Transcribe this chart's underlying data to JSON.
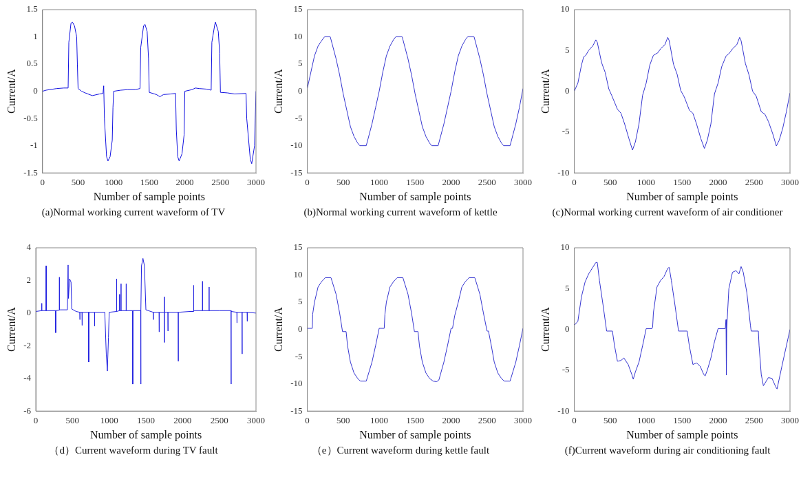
{
  "chart_data": [
    {
      "type": "line",
      "title": "(a)Normal working current waveform of TV",
      "xlabel": "Number of sample points",
      "ylabel": "Current/A",
      "xlim": [
        0,
        3000
      ],
      "xticks": [
        0,
        500,
        1000,
        1500,
        2000,
        2500,
        3000
      ],
      "ylim": [
        -1.5,
        1.5
      ],
      "yticks": [
        -1.5,
        -1,
        -0.5,
        0,
        0.5,
        1,
        1.5
      ],
      "series": [
        {
          "color": "#1010e0",
          "x": [
            0,
            50,
            100,
            200,
            300,
            360,
            370,
            400,
            420,
            450,
            480,
            490,
            500,
            550,
            600,
            700,
            800,
            850,
            860,
            870,
            900,
            920,
            950,
            980,
            990,
            1000,
            1100,
            1200,
            1300,
            1370,
            1380,
            1420,
            1440,
            1470,
            1490,
            1500,
            1600,
            1650,
            1700,
            1800,
            1870,
            1880,
            1900,
            1920,
            1960,
            1990,
            2000,
            2100,
            2150,
            2200,
            2300,
            2370,
            2380,
            2420,
            2430,
            2470,
            2490,
            2500,
            2600,
            2700,
            2860,
            2870,
            2920,
            2940,
            2980,
            3000
          ],
          "values": [
            0,
            0.02,
            0.03,
            0.05,
            0.06,
            0.06,
            0.9,
            1.25,
            1.27,
            1.2,
            1,
            0.5,
            0.05,
            0,
            -0.03,
            -0.08,
            -0.05,
            -0.04,
            0.1,
            -0.5,
            -1.2,
            -1.28,
            -1.2,
            -0.9,
            -0.3,
            0,
            0.02,
            0.03,
            0.03,
            0.05,
            0.8,
            1.2,
            1.23,
            1.1,
            0.6,
            -0.02,
            -0.06,
            -0.1,
            -0.06,
            -0.05,
            -0.04,
            -0.7,
            -1.2,
            -1.28,
            -1.15,
            -0.8,
            0,
            0.03,
            0.06,
            0.05,
            0.04,
            0.02,
            0.9,
            1.22,
            1.27,
            1.1,
            0.7,
            -0.02,
            -0.03,
            -0.05,
            -0.04,
            -0.5,
            -1.25,
            -1.33,
            -1,
            0
          ]
        }
      ]
    },
    {
      "type": "line",
      "title": "(b)Normal working current waveform of kettle",
      "xlabel": "Number of sample points",
      "ylabel": "Current/A",
      "xlim": [
        0,
        3000
      ],
      "xticks": [
        0,
        500,
        1000,
        1500,
        2000,
        2500,
        3000
      ],
      "ylim": [
        -15,
        15
      ],
      "yticks": [
        -15,
        -10,
        -5,
        0,
        5,
        10,
        15
      ],
      "series": [
        {
          "color": "#3535d0",
          "x": [
            0,
            50,
            100,
            150,
            200,
            240,
            320,
            400,
            450,
            500,
            550,
            600,
            650,
            700,
            730,
            820,
            900,
            950,
            1000,
            1050,
            1100,
            1150,
            1200,
            1230,
            1320,
            1400,
            1450,
            1500,
            1550,
            1600,
            1650,
            1700,
            1730,
            1820,
            1900,
            1950,
            2000,
            2050,
            2100,
            2150,
            2200,
            2230,
            2320,
            2400,
            2450,
            2500,
            2550,
            2600,
            2650,
            2700,
            2730,
            2820,
            2900,
            2950,
            3000
          ],
          "values": [
            0.5,
            3.5,
            6.5,
            8.3,
            9.3,
            10,
            10,
            6,
            3,
            -0.5,
            -3.5,
            -6.5,
            -8.3,
            -9.5,
            -10,
            -10,
            -6,
            -3,
            0,
            3.5,
            6.5,
            8.3,
            9.5,
            10,
            10,
            6,
            3,
            -0.5,
            -3.5,
            -6.5,
            -8.3,
            -9.5,
            -10,
            -10,
            -6,
            -3,
            0,
            3.5,
            6.5,
            8.3,
            9.5,
            10,
            10,
            6,
            3,
            -0.5,
            -3.5,
            -6.5,
            -8.3,
            -9.5,
            -10,
            -10,
            -6,
            -3,
            0.5
          ]
        }
      ]
    },
    {
      "type": "line",
      "title": "(c)Normal working current waveform of air conditioner",
      "xlabel": "Number of sample points",
      "ylabel": "Current/A",
      "xlim": [
        0,
        3000
      ],
      "xticks": [
        0,
        500,
        1000,
        1500,
        2000,
        2500,
        3000
      ],
      "ylim": [
        -10,
        10
      ],
      "yticks": [
        -10,
        -5,
        0,
        5,
        10
      ],
      "series": [
        {
          "color": "#3535d0",
          "x": [
            0,
            50,
            100,
            130,
            160,
            200,
            260,
            300,
            320,
            380,
            430,
            480,
            520,
            600,
            650,
            700,
            760,
            810,
            850,
            900,
            950,
            1000,
            1050,
            1100,
            1160,
            1200,
            1260,
            1300,
            1320,
            1380,
            1430,
            1480,
            1530,
            1600,
            1650,
            1700,
            1760,
            1810,
            1850,
            1900,
            1950,
            2000,
            2050,
            2110,
            2160,
            2200,
            2260,
            2300,
            2320,
            2380,
            2430,
            2480,
            2530,
            2600,
            2650,
            2700,
            2760,
            2810,
            2850,
            2900,
            2950,
            3000
          ],
          "values": [
            0,
            1,
            3.2,
            4.2,
            4.4,
            5,
            5.6,
            6.3,
            6,
            3.5,
            2.3,
            0.3,
            -0.5,
            -2.2,
            -2.7,
            -4,
            -5.8,
            -7.2,
            -6.2,
            -4,
            -0.5,
            1,
            3.2,
            4.4,
            4.7,
            5.2,
            5.7,
            6.6,
            6.2,
            3.3,
            2.1,
            0.1,
            -0.7,
            -2.3,
            -2.7,
            -4,
            -5.8,
            -7,
            -6,
            -4,
            -0.3,
            1,
            3,
            4.3,
            4.7,
            5.2,
            5.7,
            6.6,
            6.2,
            3.4,
            2,
            0,
            -0.6,
            -2.5,
            -2.8,
            -3.7,
            -5.2,
            -6.7,
            -6,
            -4.5,
            -2.5,
            -0.2
          ]
        }
      ]
    },
    {
      "type": "line",
      "title": "（d）Current waveform during TV fault",
      "xlabel": "Number of sample points",
      "ylabel": "Current/A",
      "xlim": [
        0,
        3000
      ],
      "xticks": [
        0,
        500,
        1000,
        1500,
        2000,
        2500,
        3000
      ],
      "ylim": [
        -6,
        4
      ],
      "yticks": [
        -6,
        -4,
        -2,
        0,
        2,
        4
      ],
      "series": [
        {
          "color": "#2020e0",
          "x": [
            0,
            80,
            81,
            82,
            140,
            141,
            142,
            270,
            271,
            272,
            320,
            321,
            322,
            430,
            440,
            445,
            460,
            480,
            490,
            550,
            600,
            601,
            602,
            630,
            631,
            632,
            720,
            721,
            722,
            800,
            801,
            802,
            940,
            960,
            975,
            990,
            1000,
            1100,
            1101,
            1102,
            1140,
            1141,
            1142,
            1160,
            1161,
            1162,
            1230,
            1231,
            1232,
            1320,
            1321,
            1322,
            1430,
            1431,
            1432,
            1440,
            1460,
            1480,
            1500,
            1600,
            1601,
            1602,
            1680,
            1681,
            1682,
            1750,
            1751,
            1752,
            1753,
            1800,
            1801,
            1802,
            1940,
            1941,
            1942,
            2100,
            2150,
            2151,
            2152,
            2270,
            2271,
            2272,
            2360,
            2361,
            2362,
            2500,
            2660,
            2661,
            2662,
            2740,
            2741,
            2742,
            2810,
            2811,
            2812,
            2880,
            2881,
            2882,
            3000
          ],
          "values": [
            0.1,
            0.15,
            0.6,
            0.15,
            0.15,
            2.9,
            0.15,
            0.15,
            -1.2,
            0.15,
            0.18,
            2.2,
            0.2,
            0.2,
            2.95,
            0.9,
            2.1,
            1.9,
            0.25,
            0.1,
            0.05,
            -0.4,
            0.05,
            0.05,
            -0.75,
            0.05,
            0.05,
            -3,
            0.05,
            0.05,
            -0.8,
            0.05,
            0.05,
            -2.5,
            -3.55,
            -1.5,
            0.05,
            0.1,
            2.1,
            0.1,
            0.15,
            1.15,
            0.15,
            0.15,
            1.8,
            0.15,
            0.15,
            1.8,
            0.15,
            0.15,
            -4.35,
            0.15,
            0.15,
            -4.35,
            0.15,
            2.9,
            3.35,
            2.9,
            0.2,
            0.05,
            -0.4,
            0.05,
            0.05,
            -1.15,
            0.05,
            0.05,
            1,
            -1.8,
            0.05,
            0.05,
            -1.1,
            0.05,
            0.05,
            -2.95,
            0.05,
            0.1,
            0.1,
            1.7,
            0.15,
            0.15,
            1.95,
            0.15,
            0.15,
            1.6,
            0.15,
            0.15,
            0.15,
            -4.35,
            0.1,
            0.05,
            -0.6,
            0.05,
            0.05,
            -2.5,
            0.05,
            0.05,
            -0.5,
            0.05,
            0
          ]
        }
      ]
    },
    {
      "type": "line",
      "title": "（e）Current waveform during kettle fault",
      "xlabel": "Number of sample points",
      "ylabel": "Current/A",
      "xlim": [
        0,
        3000
      ],
      "xticks": [
        0,
        500,
        1000,
        1500,
        2000,
        2500,
        3000
      ],
      "ylim": [
        -15,
        15
      ],
      "yticks": [
        -15,
        -10,
        -5,
        0,
        5,
        10,
        15
      ],
      "series": [
        {
          "color": "#3535d0",
          "x": [
            0,
            70,
            75,
            100,
            150,
            200,
            250,
            330,
            400,
            450,
            490,
            540,
            560,
            600,
            650,
            700,
            740,
            820,
            900,
            950,
            1000,
            1070,
            1080,
            1100,
            1150,
            1200,
            1250,
            1330,
            1400,
            1450,
            1490,
            1540,
            1560,
            1600,
            1650,
            1700,
            1750,
            1800,
            1830,
            1900,
            1950,
            2000,
            2020,
            2050,
            2100,
            2150,
            2200,
            2250,
            2330,
            2400,
            2450,
            2500,
            2520,
            2560,
            2600,
            2650,
            2700,
            2740,
            2820,
            2900,
            2950,
            3000
          ],
          "values": [
            0.2,
            0.2,
            2.8,
            5,
            7.8,
            8.8,
            9.5,
            9.5,
            6.5,
            3,
            -0.4,
            -0.4,
            -3,
            -6,
            -8,
            -9,
            -9.5,
            -9.5,
            -6,
            -3,
            0.2,
            0.2,
            2.8,
            5,
            7.8,
            8.8,
            9.5,
            9.5,
            6.5,
            3,
            -0.4,
            -0.4,
            -3,
            -6,
            -8,
            -9,
            -9.5,
            -9.6,
            -9.3,
            -6,
            -3,
            0.2,
            0.2,
            2.5,
            5,
            7.8,
            8.8,
            9.5,
            9.5,
            6.5,
            3,
            -0.3,
            -0.3,
            -3,
            -6,
            -8,
            -9,
            -9.5,
            -9.5,
            -6,
            -3,
            0.2
          ]
        }
      ]
    },
    {
      "type": "line",
      "title": "(f)Current waveform during air conditioning fault",
      "xlabel": "Number of sample points",
      "ylabel": "Current/A",
      "xlim": [
        0,
        3000
      ],
      "xticks": [
        0,
        500,
        1000,
        1500,
        2000,
        2500,
        3000
      ],
      "ylim": [
        -10,
        10
      ],
      "yticks": [
        -10,
        -5,
        0,
        5,
        10
      ],
      "series": [
        {
          "color": "#3535d0",
          "x": [
            0,
            50,
            100,
            150,
            200,
            250,
            300,
            320,
            350,
            400,
            450,
            530,
            560,
            600,
            650,
            690,
            750,
            800,
            820,
            850,
            900,
            950,
            1000,
            1080,
            1090,
            1100,
            1150,
            1200,
            1250,
            1300,
            1320,
            1350,
            1400,
            1450,
            1570,
            1600,
            1650,
            1700,
            1750,
            1800,
            1820,
            1850,
            1900,
            1950,
            2000,
            2100,
            2110,
            2115,
            2120,
            2150,
            2200,
            2250,
            2290,
            2320,
            2350,
            2400,
            2450,
            2460,
            2560,
            2570,
            2600,
            2630,
            2700,
            2750,
            2800,
            2820,
            2900,
            3000
          ],
          "values": [
            0.5,
            1,
            4,
            5.8,
            6.8,
            7.5,
            8.2,
            8.2,
            6,
            3,
            -0.2,
            -0.2,
            -2,
            -3.9,
            -3.8,
            -3.5,
            -4.3,
            -5.5,
            -6.1,
            -5.2,
            -4,
            -2,
            0.1,
            0.1,
            0.3,
            2,
            5.2,
            6,
            6.5,
            7.5,
            7.6,
            6,
            3,
            -0.2,
            -0.2,
            -2,
            -4.3,
            -4.1,
            -4.5,
            -5.5,
            -5.7,
            -5,
            -3.5,
            -1.5,
            0.1,
            0.1,
            1.2,
            -5.6,
            0.1,
            5,
            7,
            7.2,
            6.8,
            7.7,
            7,
            4.5,
            0.5,
            -0.2,
            -0.2,
            -2,
            -5.5,
            -6.9,
            -5.9,
            -6,
            -7,
            -7.3,
            -4,
            0
          ]
        }
      ]
    }
  ]
}
